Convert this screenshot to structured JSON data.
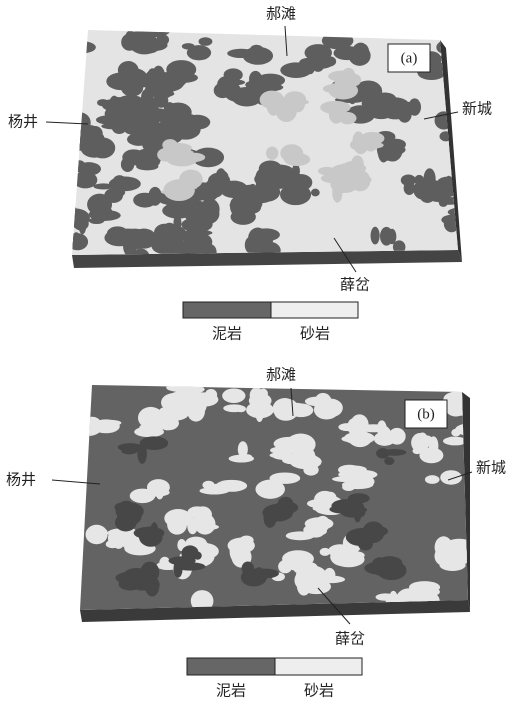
{
  "panels": [
    {
      "label": "(a)",
      "places": {
        "top": "郝滩",
        "left": "杨井",
        "right": "新城",
        "bottom": "薛岔"
      },
      "legend": [
        "泥岩",
        "砂岩"
      ]
    },
    {
      "label": "(b)",
      "places": {
        "top": "郝滩",
        "left": "杨井",
        "right": "新城",
        "bottom": "薛岔"
      },
      "legend": [
        "泥岩",
        "砂岩"
      ]
    }
  ]
}
